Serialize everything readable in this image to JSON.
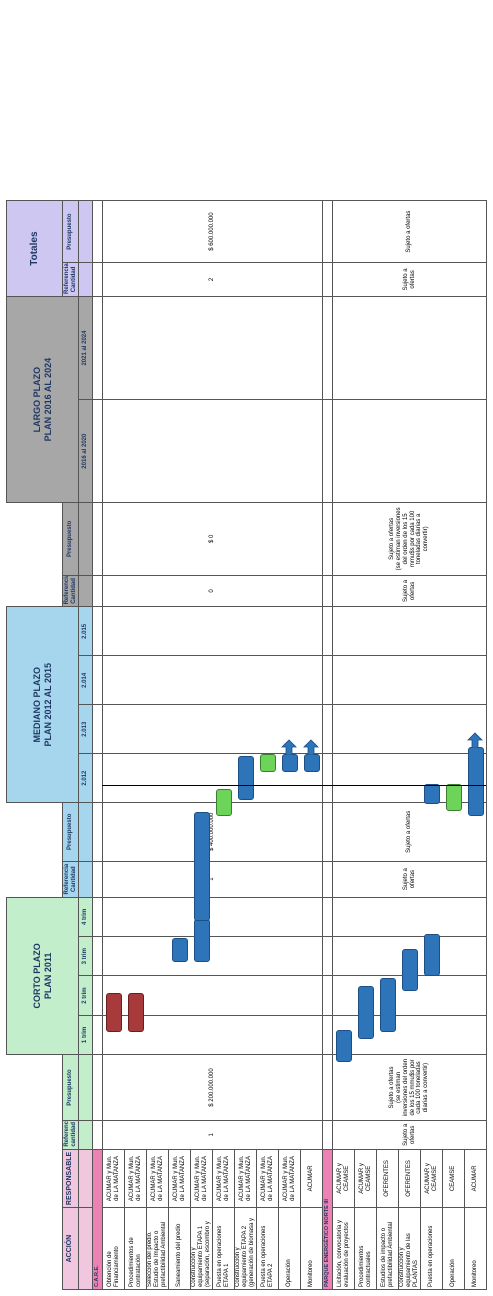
{
  "header": {
    "accion": "ACCIÓN",
    "responsable": "RESPONSABLE",
    "corto_title": "CORTO PLAZO",
    "corto_sub": "PLAN 2011",
    "mediano_title": "MEDIANO PLAZO",
    "mediano_sub": "PLAN 2012 AL 2015",
    "largo_title": "LARGO PLAZO",
    "largo_sub": "PLAN 2016 AL 2024",
    "totales": "Totales",
    "ref_cantidad_a": "Referencia cantidad",
    "ref_cantidad_b": "Referencia Cantidad",
    "presupuesto": "Presupuesto",
    "corto_cols": [
      "1 trim",
      "2 trim",
      "3 trim",
      "4 trim"
    ],
    "mediano_cols": [
      "2.012",
      "2.013",
      "2.014",
      "2.015"
    ],
    "largo_cols": [
      "2016 al 2020",
      "2021 al 2024"
    ]
  },
  "sections": {
    "care": "C.A.R.E.",
    "parque": "PARQUE ENERGÉTICO NORTE III"
  },
  "care_rows": [
    {
      "accion": "Obtención de Financiamiento",
      "responsable": "ACUMAR y Mun. de LA MATANZA"
    },
    {
      "accion": "Procedimientos de contratación",
      "responsable": "ACUMAR y Mun. de LA MATANZA"
    },
    {
      "accion": "Selección del predio. Estudio de Impacto o prefactibilidad Ambiental",
      "responsable": "ACUMAR y Mun. de LA MATANZA"
    },
    {
      "accion": "Saneamiento del predio",
      "responsable": "ACUMAR y Mun. de LA MATANZA"
    },
    {
      "accion": "Construcción y equipamiento ETAPA 1 (separación, escombro y",
      "responsable": "ACUMAR y Mun. de LA MATANZA"
    },
    {
      "accion": "Puesta en operaciones ETAPA 1",
      "responsable": "ACUMAR y Mun. de LA MATANZA"
    },
    {
      "accion": "Construcción y equipamiento ETAPA 2 (generación de biomasa y",
      "responsable": "ACUMAR y Mun. de LA MATANZA"
    },
    {
      "accion": "Puesta en operaciones ETAPA 2",
      "responsable": "ACUMAR y Mun. de LA MATANZA"
    },
    {
      "accion": "Operación",
      "responsable": "ACUMAR y Mun. de LA MATANZA"
    },
    {
      "accion": "Monitoreo",
      "responsable": "ACUMAR"
    }
  ],
  "parque_rows": [
    {
      "accion": "Licitación, convocatoria y evaluación de proyectos",
      "responsable": "ACUMAR y CEAMSE"
    },
    {
      "accion": "Procedimientos contractuales",
      "responsable": "ACUMAR y CEAMSE"
    },
    {
      "accion": "Estudios de impacto o prefactibilidad Ambiental",
      "responsable": "OFERENTES"
    },
    {
      "accion": "Construcción y equipamiento de las PLANTAS",
      "responsable": "OFERENTES"
    },
    {
      "accion": "Puesta en operaciones",
      "responsable": "ACUMAR y CEAMSE"
    },
    {
      "accion": "Operación",
      "responsable": "CEAMSE"
    },
    {
      "accion": "Monitoreo",
      "responsable": "ACUMAR"
    }
  ],
  "care_values": {
    "corto_ref": "1",
    "corto_pres": "$ 200.000.000",
    "mediano_ref": "1",
    "mediano_pres": "$ 400.000.000",
    "largo_ref": "0",
    "largo_pres": "$ 0",
    "totales_ref": "2",
    "totales_pres": "$ 600.000.000"
  },
  "parque_values": {
    "corto_pres_sujeto": "Sujeto a ofertas",
    "corto_pres_estimate": "(se estiman inversiones del orden de los 15 mmu$s por cada 100 toneladas diarias a convertir)",
    "corto_ref": "Sujeto a ofertas",
    "mediano_ref": "Sujeto a ofertas",
    "mediano_pres": "Sujeto a ofertas",
    "largo_ref": "Sujeto a ofertas",
    "largo_pres_sujeto": "Sujeto a ofertas",
    "largo_pres_estimate": "(se estiman inversiones del orden de los 15 mmu$s por cada 100 toneladas diarias a convertir)",
    "totales_ref": "Sujeto a ofertas",
    "totales_pres": "Sujeto a ofertas"
  },
  "bars": [
    {
      "color": "red",
      "row": 1,
      "start": 2,
      "end": 3
    },
    {
      "color": "red",
      "row": 2,
      "start": 2,
      "end": 3
    },
    {
      "color": "blue",
      "row": 4,
      "start": 3.9,
      "end": 4.5
    },
    {
      "color": "blue",
      "row": 5,
      "start": 3.9,
      "end": 5.0
    },
    {
      "color": "blue",
      "row": 5,
      "start": 5.0,
      "end": 5.4
    },
    {
      "color": "green",
      "row": 6,
      "start": 5.35,
      "end": 5.9
    },
    {
      "color": "blue",
      "row": 7,
      "start": 5.7,
      "end": 6.6
    },
    {
      "color": "green",
      "row": 8,
      "start": 6.3,
      "end": 6.65
    },
    {
      "color": "blue",
      "row": 9,
      "start": 6.3,
      "end": 6.65,
      "arrow": true
    },
    {
      "color": "blue",
      "row": 10,
      "start": 6.3,
      "end": 6.65,
      "arrow": true
    },
    {
      "color": "blue",
      "row": 12,
      "start": 1.2,
      "end": 2.0
    },
    {
      "color": "blue",
      "row": 13,
      "start": 1.8,
      "end": 3.2
    },
    {
      "color": "blue",
      "row": 14,
      "start": 2.0,
      "end": 3.4
    },
    {
      "color": "blue",
      "row": 15,
      "start": 3.1,
      "end": 4.2
    },
    {
      "color": "blue",
      "row": 16,
      "start": 3.5,
      "end": 4.6
    },
    {
      "color": "blue",
      "row": 16,
      "start": 5.6,
      "end": 6.0
    },
    {
      "color": "green",
      "row": 17,
      "start": 5.45,
      "end": 6.0
    },
    {
      "color": "blue",
      "row": 18,
      "start": 5.35,
      "end": 6.8,
      "arrow": true
    }
  ]
}
